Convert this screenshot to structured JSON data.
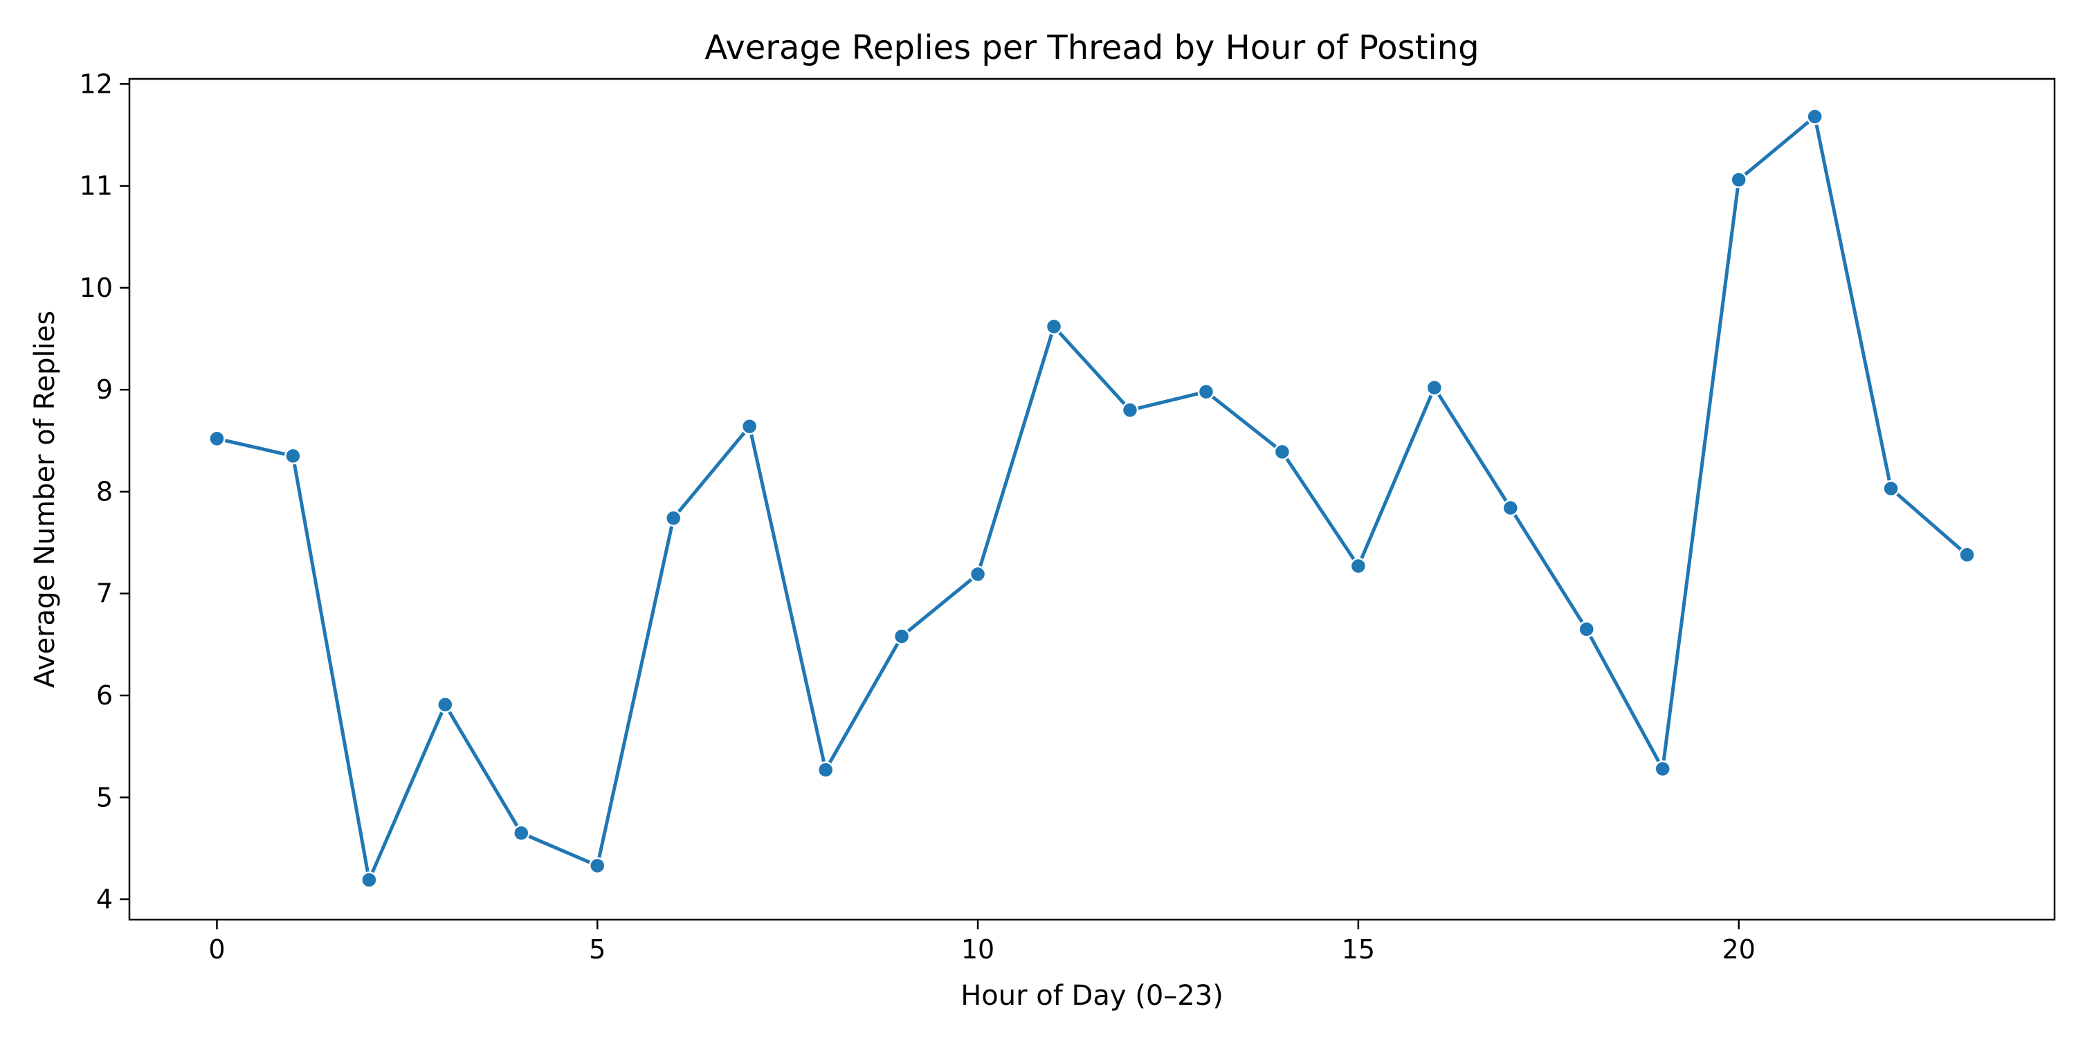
{
  "chart_data": {
    "type": "line",
    "title": "Average Replies per Thread by Hour of Posting",
    "xlabel": "Hour of Day (0–23)",
    "ylabel": "Average Number of Replies",
    "xlim": [
      -1.15,
      24.15
    ],
    "ylim": [
      3.8,
      12.05
    ],
    "x_ticks": [
      0,
      5,
      10,
      15,
      20
    ],
    "y_ticks": [
      4,
      5,
      6,
      7,
      8,
      9,
      10,
      11,
      12
    ],
    "grid": false,
    "legend": "none",
    "series": [
      {
        "x": [
          0,
          1,
          2,
          3,
          4,
          5,
          6,
          7,
          8,
          9,
          10,
          11,
          12,
          13,
          14,
          15,
          16,
          17,
          18,
          19,
          20,
          21,
          22,
          23
        ],
        "values": [
          8.52,
          8.35,
          4.19,
          5.91,
          4.65,
          4.33,
          7.74,
          8.64,
          5.27,
          6.58,
          7.19,
          9.62,
          8.8,
          8.98,
          8.39,
          7.27,
          9.02,
          7.84,
          6.65,
          5.28,
          11.06,
          11.68,
          8.03,
          7.38
        ],
        "color": "#1f77b4",
        "marker": "circle"
      }
    ]
  }
}
